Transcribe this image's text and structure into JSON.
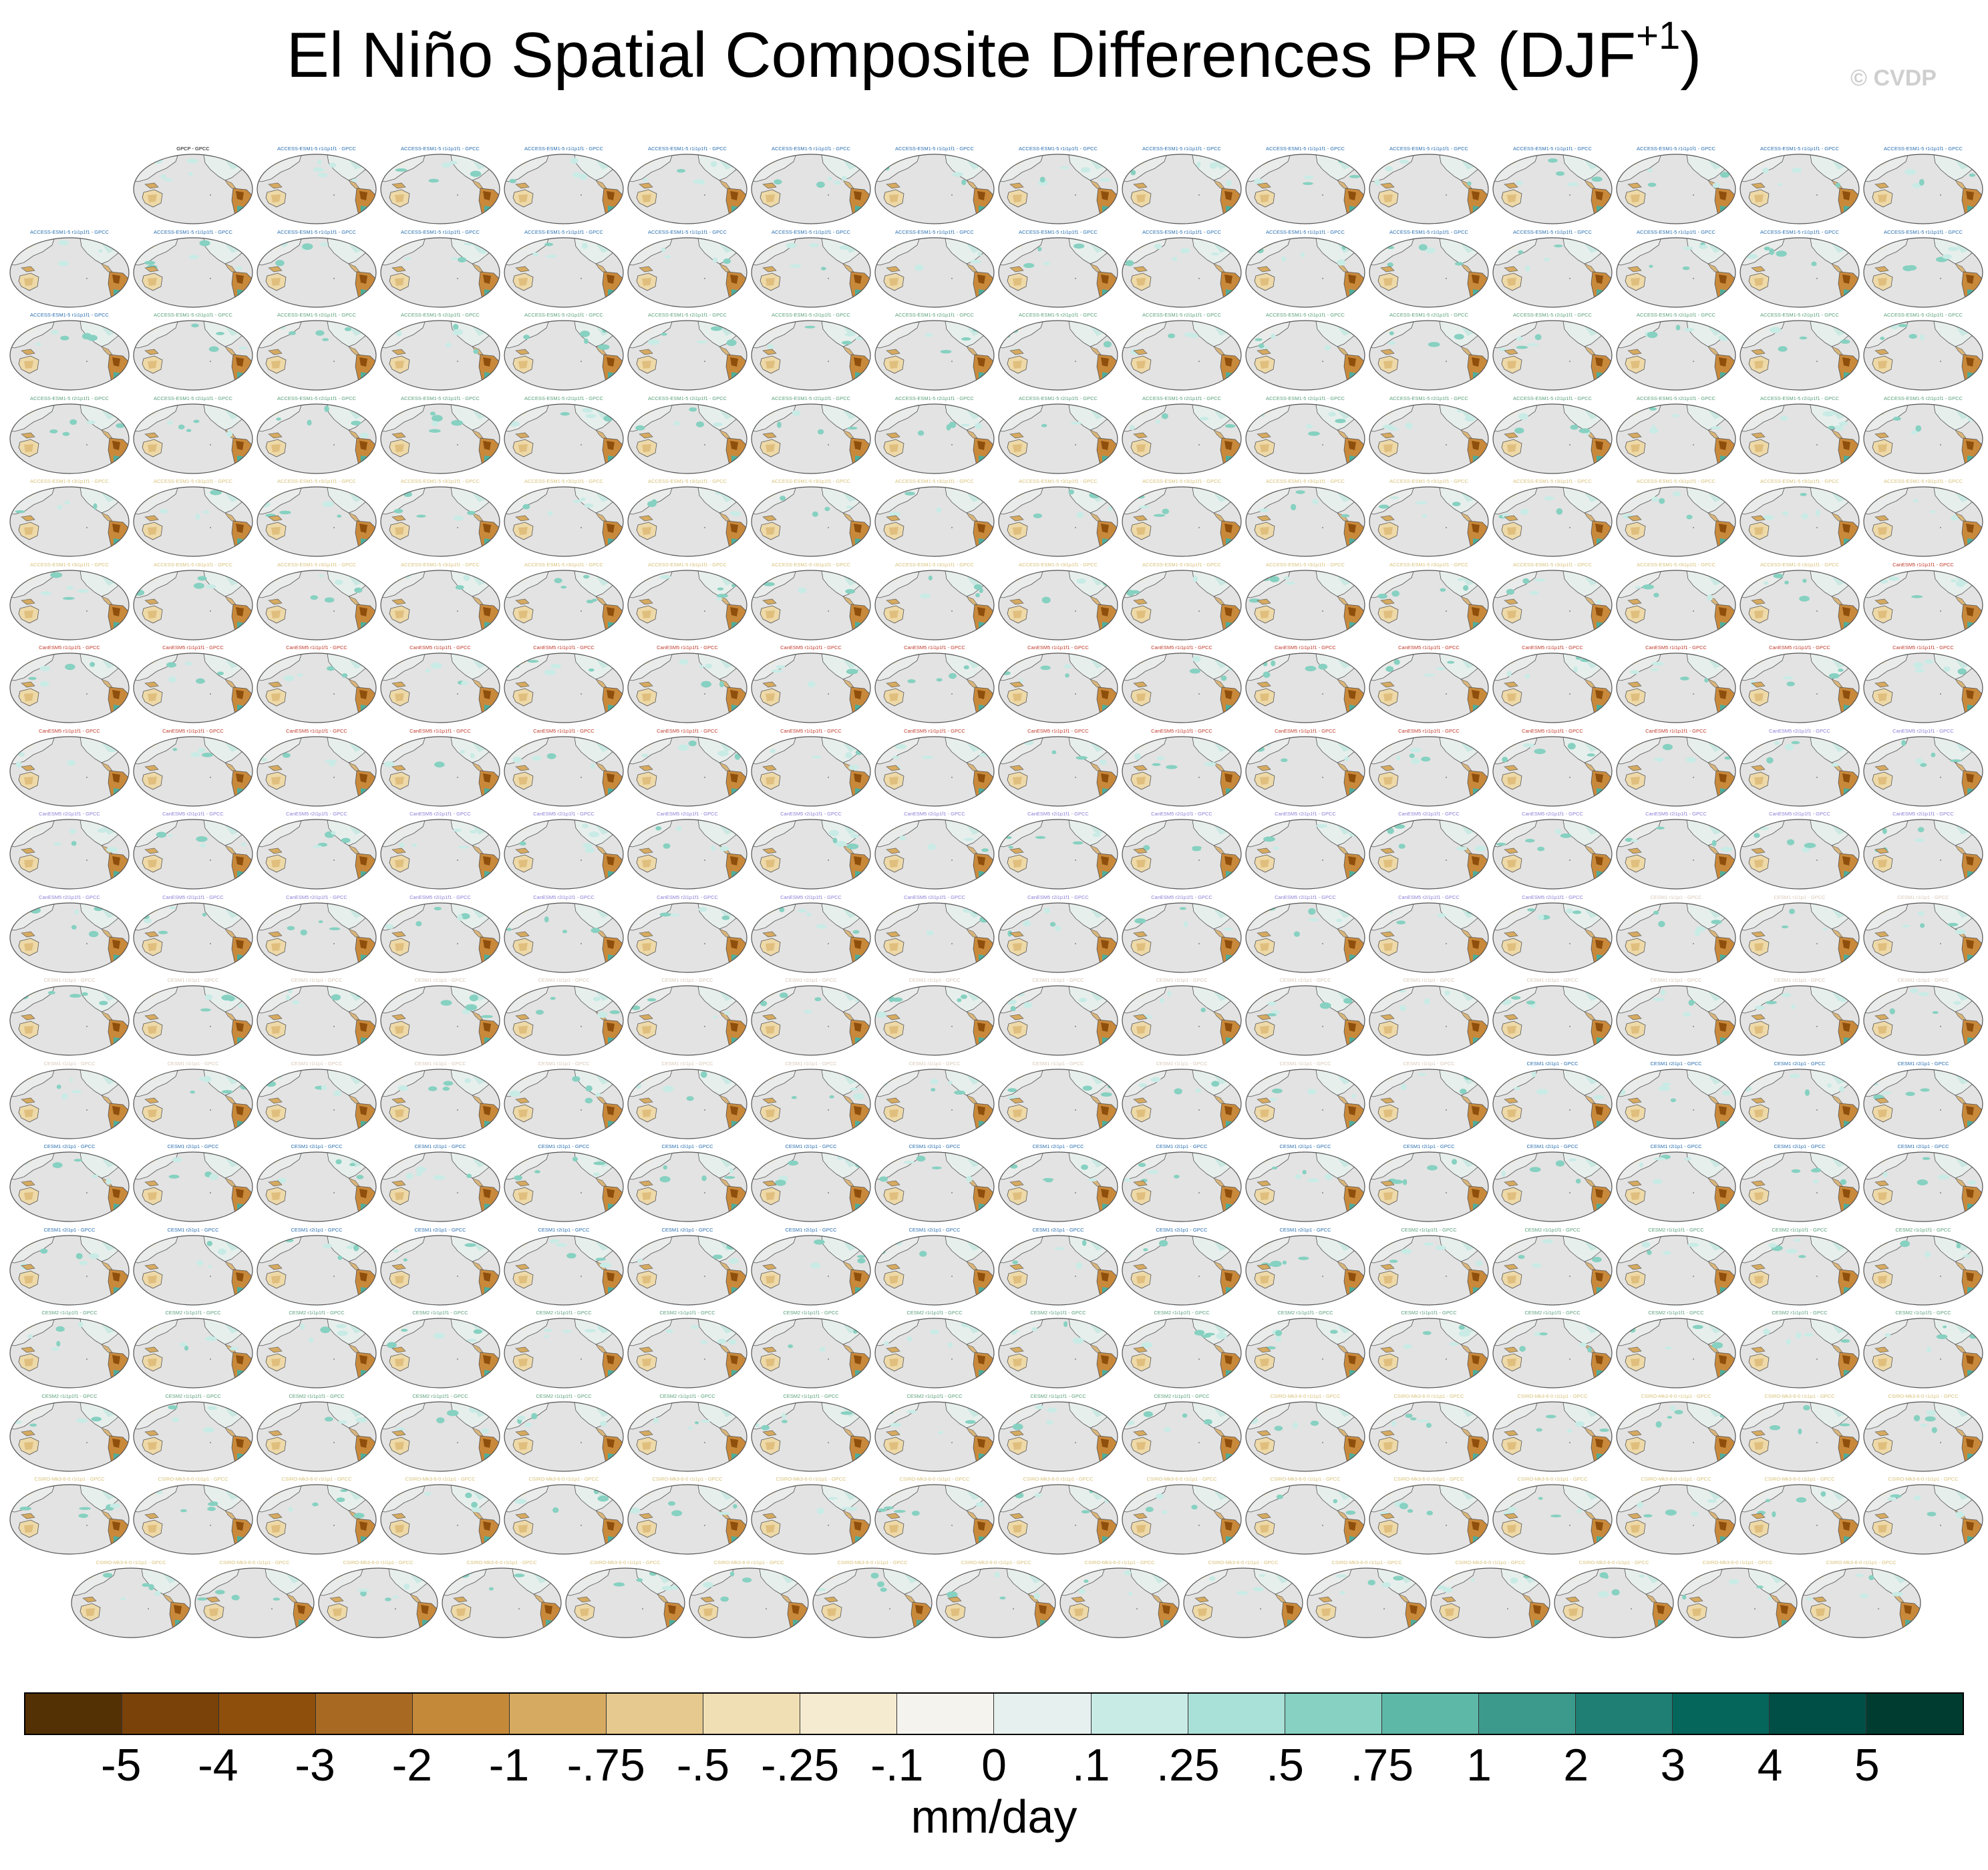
{
  "title": {
    "main": "El Niño Spatial Composite Differences PR (DJF",
    "superscript": "+1",
    "suffix": ")"
  },
  "watermark": "© CVDP",
  "panels": {
    "first_label": "GPCP - GPCC",
    "labels": [
      "ACCESS-ESM1-5 r1i1p1f1 - GPCC",
      "ACCESS-ESM1-5 r2i1p1f1 - GPCC",
      "ACCESS-ESM1-5 r3i1p1f1 - GPCC",
      "CanESM5 r1i1p1f1 - GPCC",
      "CanESM5 r2i1p1f1 - GPCC",
      "CESM1 r1i1p1 - GPCC",
      "CESM1 r2i1p1 - GPCC",
      "CESM2 r1i1p1f1 - GPCC",
      "CSIRO-Mk3-6-0 r1i1p1 - GPCC"
    ],
    "label_colors": [
      "#000000",
      "#2a6fb0",
      "#5aa07a",
      "#d7c27a",
      "#c0392b",
      "#8a7fd6",
      "#d8c8b8"
    ]
  },
  "colorbar": {
    "colors": [
      "#543005",
      "#7a4209",
      "#8f4f0c",
      "#a86a22",
      "#c48a3a",
      "#d6aa60",
      "#e6c98e",
      "#f0dfb4",
      "#f5ebd0",
      "#f5f3ee",
      "#e6f1ef",
      "#c9ebe6",
      "#a9e0d7",
      "#86d1c1",
      "#5eb8a7",
      "#3c9a8d",
      "#1f7f74",
      "#05665c",
      "#004f46",
      "#003c30"
    ],
    "ticks": [
      "-5",
      "-4",
      "-3",
      "-2",
      "-1",
      "-.75",
      "-.5",
      "-.25",
      "-.1",
      "0",
      ".1",
      ".25",
      ".5",
      ".75",
      "1",
      "2",
      "3",
      "4",
      "5"
    ],
    "units": "mm/day"
  }
}
